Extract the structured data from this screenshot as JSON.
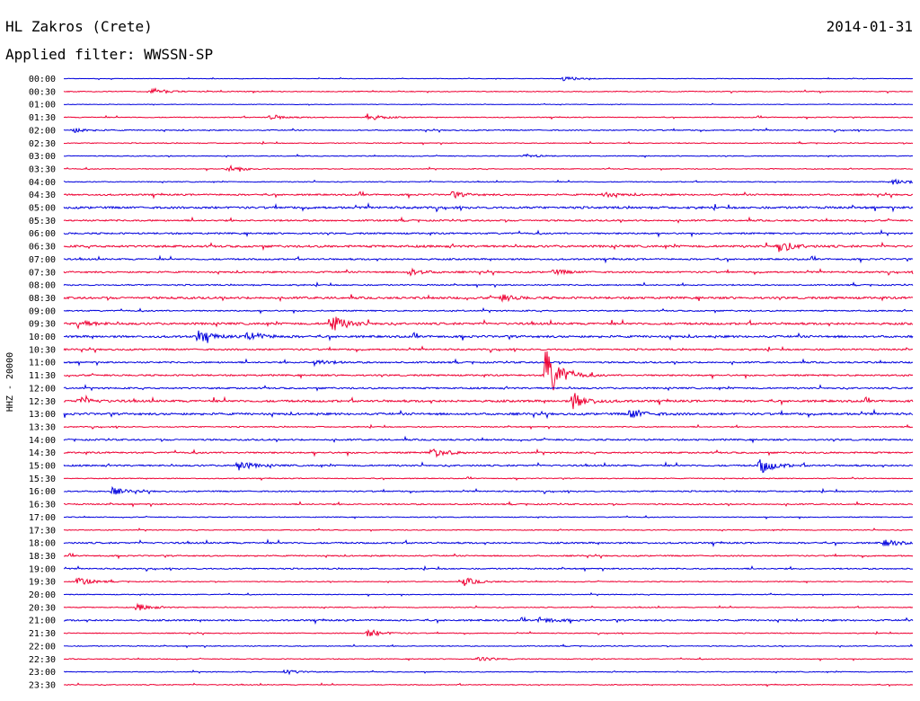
{
  "header": {
    "station": "HL Zakros (Crete)",
    "date": "2014-01-31",
    "filter_text": "Applied filter: WWSSN-SP"
  },
  "chart_data": {
    "type": "line",
    "subtype": "helicorder",
    "ylabel": "HHZ - 20000",
    "x_range_minutes": [
      0,
      30
    ],
    "row_labels": [
      "00:00",
      "00:30",
      "01:00",
      "01:30",
      "02:00",
      "02:30",
      "03:00",
      "03:30",
      "04:00",
      "04:30",
      "05:00",
      "05:30",
      "06:00",
      "06:30",
      "07:00",
      "07:30",
      "08:00",
      "08:30",
      "09:00",
      "09:30",
      "10:00",
      "10:30",
      "11:00",
      "11:30",
      "12:00",
      "12:30",
      "13:00",
      "13:30",
      "14:00",
      "14:30",
      "15:00",
      "15:30",
      "16:00",
      "16:30",
      "17:00",
      "17:30",
      "18:00",
      "18:30",
      "19:00",
      "19:30",
      "20:00",
      "20:30",
      "21:00",
      "21:30",
      "22:00",
      "22:30",
      "23:00",
      "23:30"
    ],
    "colors": [
      "#0000dd",
      "#ee0033"
    ],
    "grid": false,
    "noise_levels": [
      0.5,
      0.8,
      0.5,
      0.8,
      1.0,
      0.8,
      0.8,
      0.8,
      0.8,
      1.5,
      2.0,
      1.5,
      1.5,
      2.0,
      1.5,
      1.5,
      1.2,
      2.0,
      1.2,
      2.0,
      2.0,
      1.5,
      1.5,
      1.5,
      1.5,
      2.0,
      2.0,
      1.0,
      1.5,
      1.5,
      1.5,
      0.8,
      1.2,
      1.2,
      0.8,
      0.8,
      1.5,
      1.2,
      1.2,
      0.8,
      0.8,
      0.8,
      1.5,
      0.8,
      0.8,
      0.8,
      0.8,
      0.8
    ],
    "events": [
      {
        "row": 0,
        "minute": 17.6,
        "amplitude": 3
      },
      {
        "row": 1,
        "minute": 3.0,
        "amplitude": 5
      },
      {
        "row": 3,
        "minute": 7.3,
        "amplitude": 3
      },
      {
        "row": 3,
        "minute": 10.7,
        "amplitude": 4
      },
      {
        "row": 4,
        "minute": 0.3,
        "amplitude": 3
      },
      {
        "row": 6,
        "minute": 16.3,
        "amplitude": 2
      },
      {
        "row": 7,
        "minute": 5.8,
        "amplitude": 4
      },
      {
        "row": 8,
        "minute": 29.3,
        "amplitude": 4
      },
      {
        "row": 9,
        "minute": 13.7,
        "amplitude": 3
      },
      {
        "row": 9,
        "minute": 19.0,
        "amplitude": 3
      },
      {
        "row": 13,
        "minute": 25.2,
        "amplitude": 8
      },
      {
        "row": 15,
        "minute": 12.2,
        "amplitude": 4
      },
      {
        "row": 15,
        "minute": 17.3,
        "amplitude": 3
      },
      {
        "row": 17,
        "minute": 15.4,
        "amplitude": 4
      },
      {
        "row": 19,
        "minute": 0.5,
        "amplitude": 4
      },
      {
        "row": 19,
        "minute": 9.4,
        "amplitude": 12
      },
      {
        "row": 20,
        "minute": 4.7,
        "amplitude": 7
      },
      {
        "row": 20,
        "minute": 6.5,
        "amplitude": 6
      },
      {
        "row": 22,
        "minute": 8.8,
        "amplitude": 4
      },
      {
        "row": 23,
        "minute": 17.0,
        "amplitude": 32
      },
      {
        "row": 25,
        "minute": 18.0,
        "amplitude": 9
      },
      {
        "row": 25,
        "minute": 0.5,
        "amplitude": 4
      },
      {
        "row": 26,
        "minute": 20.0,
        "amplitude": 6
      },
      {
        "row": 29,
        "minute": 13.0,
        "amplitude": 6
      },
      {
        "row": 30,
        "minute": 6.1,
        "amplitude": 6
      },
      {
        "row": 30,
        "minute": 24.6,
        "amplitude": 9
      },
      {
        "row": 32,
        "minute": 1.7,
        "amplitude": 4
      },
      {
        "row": 36,
        "minute": 29.0,
        "amplitude": 4
      },
      {
        "row": 39,
        "minute": 0.5,
        "amplitude": 5
      },
      {
        "row": 39,
        "minute": 14.1,
        "amplitude": 5
      },
      {
        "row": 41,
        "minute": 2.6,
        "amplitude": 4
      },
      {
        "row": 42,
        "minute": 16.8,
        "amplitude": 4
      },
      {
        "row": 43,
        "minute": 10.7,
        "amplitude": 5
      },
      {
        "row": 45,
        "minute": 14.6,
        "amplitude": 3
      },
      {
        "row": 46,
        "minute": 7.8,
        "amplitude": 3
      }
    ]
  }
}
